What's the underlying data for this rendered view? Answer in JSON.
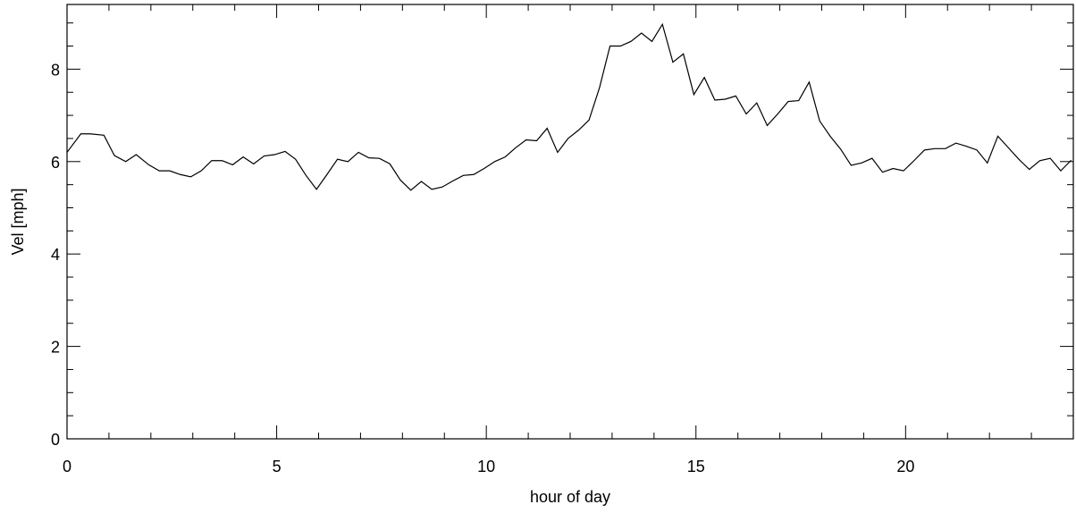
{
  "chart_data": {
    "type": "line",
    "title": "",
    "xlabel": "hour of day",
    "ylabel": "Vel [mph]",
    "xlim": [
      0,
      24
    ],
    "ylim": [
      0,
      9.4
    ],
    "xticks": [
      0,
      5,
      10,
      15,
      20
    ],
    "yticks": [
      0,
      2,
      4,
      6,
      8
    ],
    "grid": false,
    "series": [
      {
        "x": [
          0,
          0.33,
          0.55,
          0.88,
          1.13,
          1.4,
          1.65,
          1.95,
          2.2,
          2.45,
          2.7,
          2.95,
          3.2,
          3.45,
          3.7,
          3.95,
          4.2,
          4.45,
          4.7,
          4.95,
          5.2,
          5.45,
          5.7,
          5.95,
          6.2,
          6.45,
          6.7,
          6.95,
          7.2,
          7.45,
          7.7,
          7.95,
          8.2,
          8.45,
          8.7,
          8.95,
          9.2,
          9.45,
          9.7,
          9.95,
          10.2,
          10.45,
          10.7,
          10.95,
          11.2,
          11.45,
          11.7,
          11.95,
          12.2,
          12.45,
          12.7,
          12.95,
          13.2,
          13.45,
          13.7,
          13.95,
          14.2,
          14.45,
          14.7,
          14.95,
          15.2,
          15.45,
          15.7,
          15.95,
          16.2,
          16.45,
          16.7,
          16.95,
          17.2,
          17.45,
          17.7,
          17.95,
          18.2,
          18.45,
          18.7,
          18.95,
          19.2,
          19.45,
          19.7,
          19.95,
          20.2,
          20.45,
          20.7,
          20.95,
          21.2,
          21.45,
          21.7,
          21.95,
          22.2,
          22.45,
          22.7,
          22.95,
          23.2,
          23.45,
          23.7,
          23.95
        ],
        "values": [
          6.2,
          6.6,
          6.6,
          6.57,
          6.13,
          6.0,
          6.15,
          5.93,
          5.8,
          5.8,
          5.72,
          5.67,
          5.8,
          6.02,
          6.02,
          5.93,
          6.1,
          5.95,
          6.12,
          6.15,
          6.22,
          6.05,
          5.7,
          5.4,
          5.72,
          6.05,
          6.0,
          6.2,
          6.08,
          6.07,
          5.95,
          5.6,
          5.38,
          5.57,
          5.4,
          5.45,
          5.58,
          5.7,
          5.72,
          5.85,
          6.0,
          6.1,
          6.3,
          6.47,
          6.45,
          6.72,
          6.2,
          6.5,
          6.68,
          6.9,
          7.6,
          8.5,
          8.5,
          8.6,
          8.78,
          8.6,
          8.97,
          8.15,
          8.33,
          7.45,
          7.82,
          7.33,
          7.35,
          7.42,
          7.03,
          7.27,
          6.78,
          7.03,
          7.3,
          7.32,
          7.72,
          6.88,
          6.55,
          6.27,
          5.92,
          5.97,
          6.07,
          5.77,
          5.85,
          5.8,
          6.02,
          6.25,
          6.28,
          6.28,
          6.4,
          6.33,
          6.25,
          5.97,
          6.55,
          6.3,
          6.05,
          5.83,
          6.02,
          6.07,
          5.8,
          6.03
        ]
      }
    ]
  }
}
